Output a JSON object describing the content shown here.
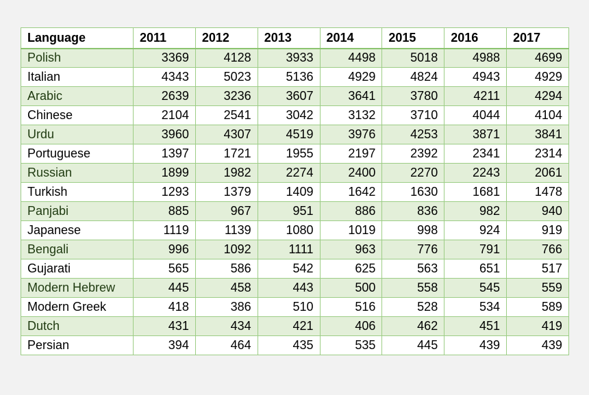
{
  "table": {
    "headers": [
      "Language",
      "2011",
      "2012",
      "2013",
      "2014",
      "2015",
      "2016",
      "2017"
    ],
    "rows": [
      [
        "Polish",
        "3369",
        "4128",
        "3933",
        "4498",
        "5018",
        "4988",
        "4699"
      ],
      [
        "Italian",
        "4343",
        "5023",
        "5136",
        "4929",
        "4824",
        "4943",
        "4929"
      ],
      [
        "Arabic",
        "2639",
        "3236",
        "3607",
        "3641",
        "3780",
        "4211",
        "4294"
      ],
      [
        "Chinese",
        "2104",
        "2541",
        "3042",
        "3132",
        "3710",
        "4044",
        "4104"
      ],
      [
        "Urdu",
        "3960",
        "4307",
        "4519",
        "3976",
        "4253",
        "3871",
        "3841"
      ],
      [
        "Portuguese",
        "1397",
        "1721",
        "1955",
        "2197",
        "2392",
        "2341",
        "2314"
      ],
      [
        "Russian",
        "1899",
        "1982",
        "2274",
        "2400",
        "2270",
        "2243",
        "2061"
      ],
      [
        "Turkish",
        "1293",
        "1379",
        "1409",
        "1642",
        "1630",
        "1681",
        "1478"
      ],
      [
        "Panjabi",
        "885",
        "967",
        "951",
        "886",
        "836",
        "982",
        "940"
      ],
      [
        "Japanese",
        "1119",
        "1139",
        "1080",
        "1019",
        "998",
        "924",
        "919"
      ],
      [
        "Bengali",
        "996",
        "1092",
        "1111",
        "963",
        "776",
        "791",
        "766"
      ],
      [
        "Gujarati",
        "565",
        "586",
        "542",
        "625",
        "563",
        "651",
        "517"
      ],
      [
        "Modern Hebrew",
        "445",
        "458",
        "443",
        "500",
        "558",
        "545",
        "559"
      ],
      [
        "Modern Greek",
        "418",
        "386",
        "510",
        "516",
        "528",
        "534",
        "589"
      ],
      [
        "Dutch",
        "431",
        "434",
        "421",
        "406",
        "462",
        "451",
        "419"
      ],
      [
        "Persian",
        "394",
        "464",
        "435",
        "535",
        "445",
        "439",
        "439"
      ]
    ]
  },
  "colors": {
    "border": "#9ccd85",
    "shaded_row": "#e3efd9"
  }
}
